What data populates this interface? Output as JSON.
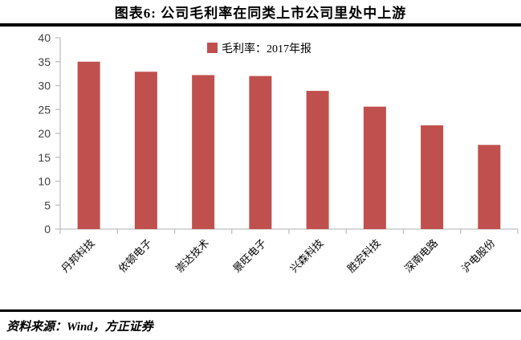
{
  "header": {
    "title": "图表6:  公司毛利率在同类上市公司里处中上游"
  },
  "chart_data": {
    "type": "bar",
    "title": "图表6:  公司毛利率在同类上市公司里处中上游",
    "legend": [
      "毛利率：2017年报"
    ],
    "legend_position": "top-center",
    "categories": [
      "丹邦科技",
      "依顿电子",
      "崇达技术",
      "景旺电子",
      "兴森科技",
      "胜宏科技",
      "深南电路",
      "沪电股份"
    ],
    "values": [
      35.0,
      32.9,
      32.2,
      32.0,
      28.9,
      25.6,
      21.7,
      17.6
    ],
    "xlabel": "",
    "ylabel": "",
    "ylim": [
      0,
      40
    ],
    "ytick_step": 5,
    "ytick_labels": [
      "0",
      "5",
      "10",
      "15",
      "20",
      "25",
      "30",
      "35",
      "40"
    ],
    "grid": false,
    "colors": {
      "bar": "#C0504D",
      "axis": "#BFBFBF",
      "tick_label": "#3F3F3F",
      "category_label": "#000000",
      "legend_text": "#000000"
    }
  },
  "footer": {
    "source": "资料来源：Wind，方正证券"
  }
}
